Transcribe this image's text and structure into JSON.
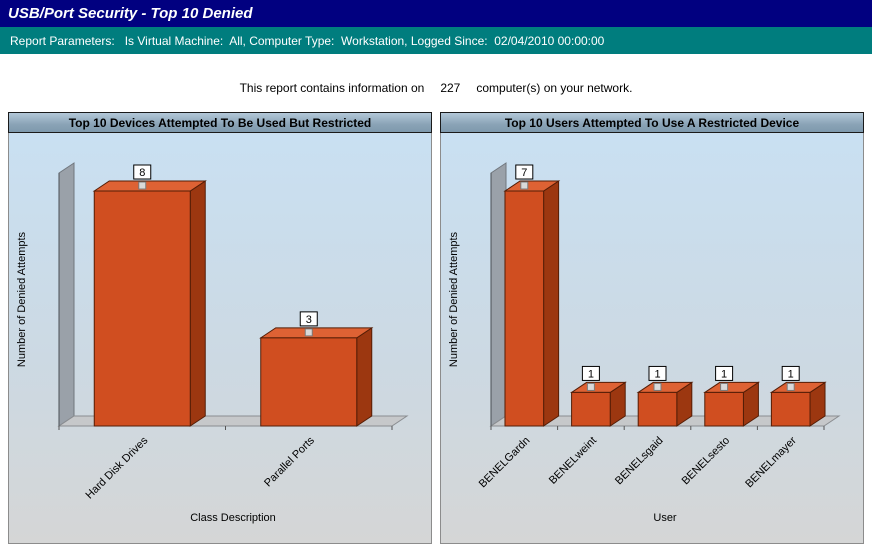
{
  "header": {
    "title": "USB/Port Security - Top 10 Denied"
  },
  "params": {
    "label": "Report Parameters:",
    "text": "Is Virtual Machine:  All, Computer Type:  Workstation, Logged Since:  02/04/2010 00:00:00"
  },
  "info": {
    "prefix": "This report contains information on",
    "count": "227",
    "suffix": "computer(s) on your network."
  },
  "chart_data": [
    {
      "type": "bar",
      "title": "Top 10 Devices Attempted To Be Used But Restricted",
      "categories": [
        "Hard Disk Drives",
        "Parallel Ports"
      ],
      "values": [
        8,
        3
      ],
      "xlabel": "Class Description",
      "ylabel": "Number of Denied Attempts",
      "ylim": [
        0,
        8
      ],
      "grid": false,
      "legend": "none",
      "style": "3d-column"
    },
    {
      "type": "bar",
      "title": "Top 10 Users Attempted To Use A Restricted Device",
      "categories": [
        "BENELGardn",
        "BENELweint",
        "BENELsgaid",
        "BENELsesto",
        "BENELmayer"
      ],
      "values": [
        7,
        1,
        1,
        1,
        1
      ],
      "xlabel": "User",
      "ylabel": "Number of Denied Attempts",
      "ylim": [
        0,
        7
      ],
      "grid": false,
      "legend": "none",
      "style": "3d-column"
    }
  ],
  "colors": {
    "header_bg": "#010080",
    "params_bg": "#007d7e",
    "bar_front": "#d04e20",
    "bar_top": "#de6234",
    "bar_side": "#9c3710",
    "bar_edge": "#541d06",
    "wall_fill": "#9aa1a9",
    "wall_edge": "#70767d",
    "floor_fill": "#c6c8ca",
    "floor_edge": "#8a8d90",
    "marker_fill": "#d9d9d9",
    "value_box_fill": "#ffffff",
    "value_box_edge": "#000000"
  }
}
